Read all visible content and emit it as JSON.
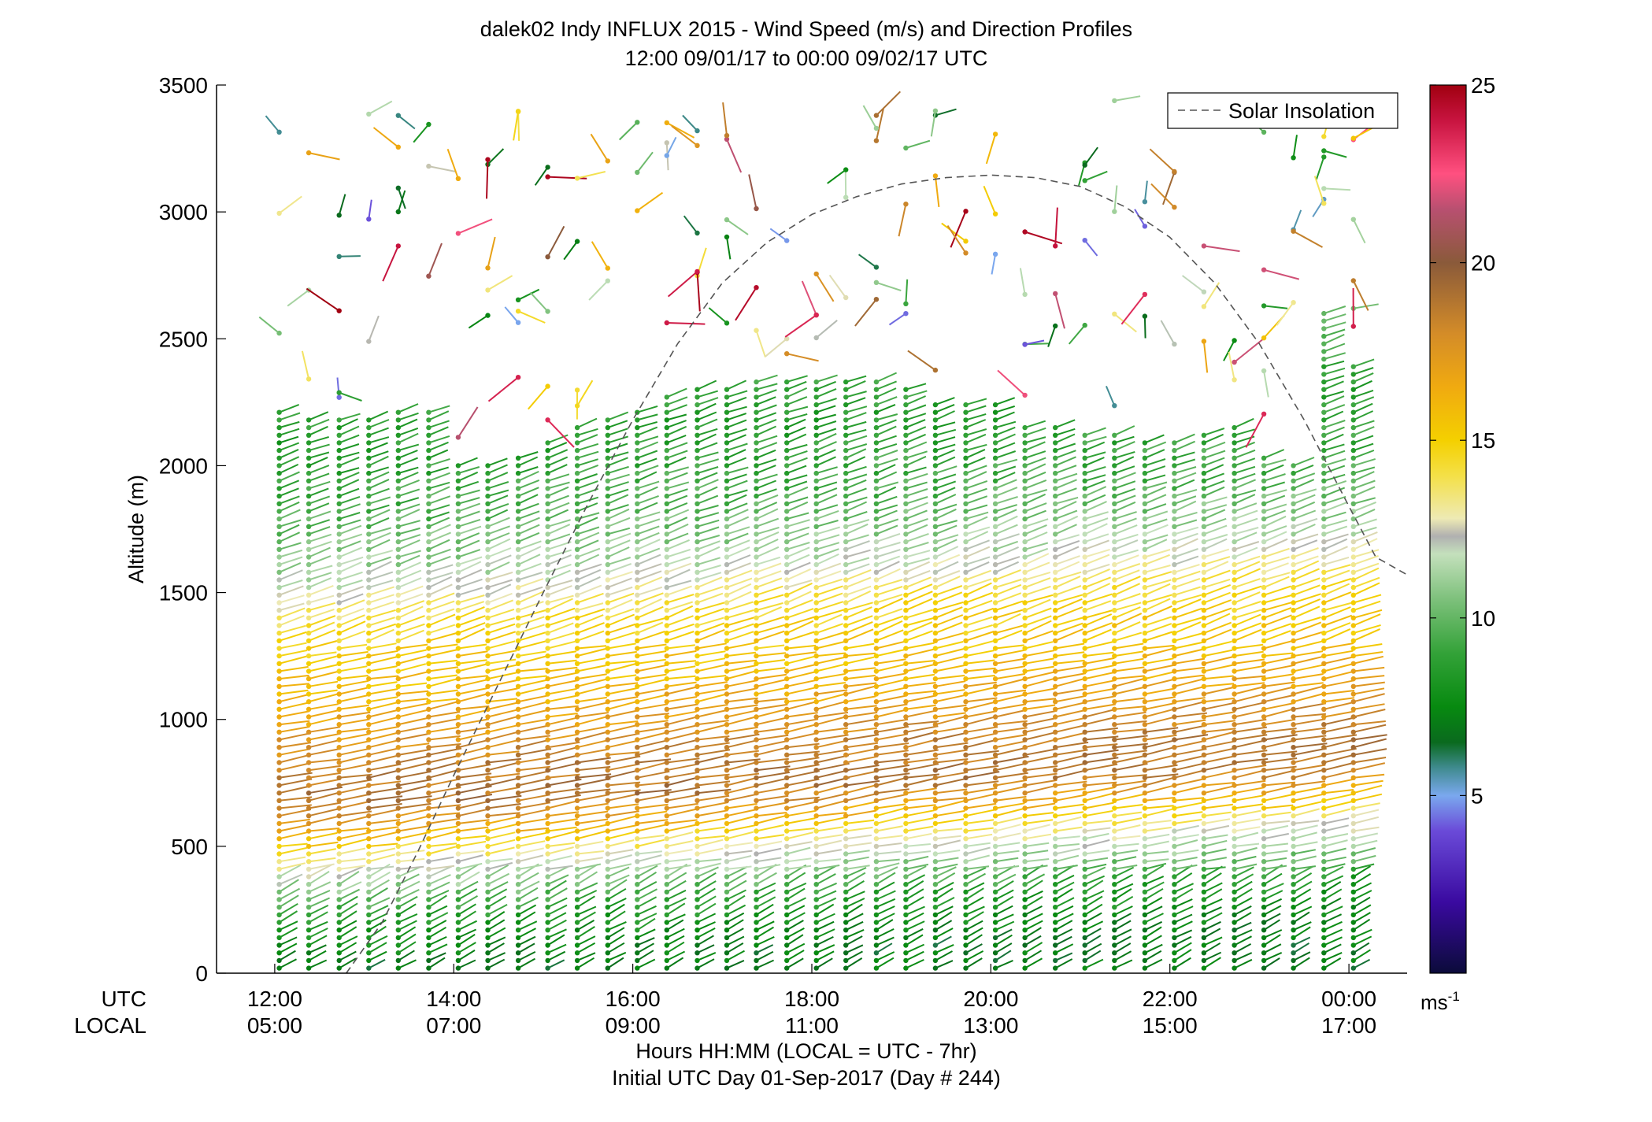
{
  "chart_data": {
    "type": "wind-barb-profile",
    "title": "dalek02 Indy INFLUX 2015 - Wind Speed (m/s) and Direction Profiles",
    "subtitle": "12:00 09/01/17 to 00:00 09/02/17  UTC",
    "ylabel": "Altitude (m)",
    "ylim": [
      0,
      3500
    ],
    "yticks": [
      "0",
      "500",
      "1000",
      "1500",
      "2000",
      "2500",
      "3000",
      "3500"
    ],
    "xlim_hours": [
      11.35,
      24.65
    ],
    "x_tick_hours": [
      12,
      14,
      16,
      18,
      20,
      22,
      24
    ],
    "utc_row_label": "UTC",
    "local_row_label": "LOCAL",
    "utc_ticks": [
      "12:00",
      "14:00",
      "16:00",
      "18:00",
      "20:00",
      "22:00",
      "00:00"
    ],
    "local_ticks": [
      "05:00",
      "07:00",
      "09:00",
      "11:00",
      "13:00",
      "15:00",
      "17:00"
    ],
    "xlabel_line1": "Hours HH:MM  (LOCAL = UTC - 7hr)",
    "xlabel_line2": "Initial UTC Day 01-Sep-2017 (Day # 244)",
    "legend": {
      "label": "Solar Insolation",
      "style": "dashed gray",
      "position": "top-right"
    },
    "colorbar": {
      "range": [
        0,
        25
      ],
      "ticks": [
        "5",
        "10",
        "15",
        "20",
        "25"
      ],
      "unit_label": "ms",
      "unit_exponent": "-1",
      "stops": [
        {
          "v": 0,
          "c": "#0b0b3a"
        },
        {
          "v": 2,
          "c": "#3a0aa0"
        },
        {
          "v": 4,
          "c": "#6a4ad8"
        },
        {
          "v": 5,
          "c": "#7aa8ee"
        },
        {
          "v": 5.8,
          "c": "#3e8a8c"
        },
        {
          "v": 6.5,
          "c": "#0a6a1e"
        },
        {
          "v": 7.5,
          "c": "#078a10"
        },
        {
          "v": 9,
          "c": "#33a238"
        },
        {
          "v": 10.5,
          "c": "#7cc07a"
        },
        {
          "v": 11.8,
          "c": "#c4e0bc"
        },
        {
          "v": 12.3,
          "c": "#b0b0b0"
        },
        {
          "v": 12.8,
          "c": "#eeeab4"
        },
        {
          "v": 14,
          "c": "#f4e048"
        },
        {
          "v": 15,
          "c": "#f4d000"
        },
        {
          "v": 16.5,
          "c": "#f0aa10"
        },
        {
          "v": 18,
          "c": "#d48c28"
        },
        {
          "v": 20,
          "c": "#8a5a3a"
        },
        {
          "v": 21.5,
          "c": "#b85070"
        },
        {
          "v": 22.5,
          "c": "#ff5080"
        },
        {
          "v": 24,
          "c": "#c81440"
        },
        {
          "v": 25,
          "c": "#a00010"
        }
      ]
    },
    "solar_insolation_curve": {
      "x_hours": [
        12.8,
        13.2,
        13.6,
        14.0,
        14.5,
        15.0,
        15.5,
        16.0,
        16.5,
        17.0,
        17.5,
        18.0,
        18.5,
        19.0,
        19.5,
        20.0,
        20.5,
        21.0,
        21.5,
        22.0,
        22.5,
        23.0,
        23.5,
        24.0,
        24.3,
        24.65
      ],
      "altitude_equiv": [
        0,
        200,
        480,
        780,
        1140,
        1500,
        1850,
        2180,
        2480,
        2720,
        2880,
        2990,
        3060,
        3110,
        3135,
        3145,
        3135,
        3100,
        3020,
        2900,
        2720,
        2480,
        2180,
        1840,
        1640,
        1570
      ]
    },
    "profiles": {
      "times_hours": [
        12.05,
        12.38,
        12.72,
        13.05,
        13.38,
        13.72,
        14.05,
        14.38,
        14.72,
        15.05,
        15.38,
        15.72,
        16.05,
        16.38,
        16.72,
        17.05,
        17.38,
        17.72,
        18.05,
        18.38,
        18.72,
        19.05,
        19.38,
        19.72,
        20.05,
        20.38,
        20.72,
        21.05,
        21.38,
        21.72,
        22.05,
        22.38,
        22.72,
        23.05,
        23.38,
        23.72,
        24.05
      ],
      "top_altitude_m": [
        2230,
        2200,
        2180,
        2200,
        2220,
        2230,
        2000,
        2020,
        2050,
        2100,
        2150,
        2180,
        2220,
        2280,
        2300,
        2320,
        2330,
        2340,
        2340,
        2350,
        2350,
        2300,
        2250,
        2250,
        2240,
        2150,
        2170,
        2130,
        2130,
        2100,
        2100,
        2120,
        2150,
        2050,
        2000,
        2600,
        2400
      ],
      "altitude_step_m": 30,
      "speed_profile_ms": [
        {
          "alt": 0,
          "v": 7
        },
        {
          "alt": 200,
          "v": 8.5
        },
        {
          "alt": 330,
          "v": 11
        },
        {
          "alt": 420,
          "v": 12.8
        },
        {
          "alt": 520,
          "v": 16
        },
        {
          "alt": 650,
          "v": 19
        },
        {
          "alt": 800,
          "v": 18.5
        },
        {
          "alt": 950,
          "v": 17
        },
        {
          "alt": 1150,
          "v": 15.5
        },
        {
          "alt": 1350,
          "v": 14.5
        },
        {
          "alt": 1550,
          "v": 11.5
        },
        {
          "alt": 1800,
          "v": 9.5
        },
        {
          "alt": 2100,
          "v": 8.5
        },
        {
          "alt": 2400,
          "v": 10
        }
      ],
      "direction_note": "wind from west-southwest, barb tails extending to the upper right"
    }
  }
}
